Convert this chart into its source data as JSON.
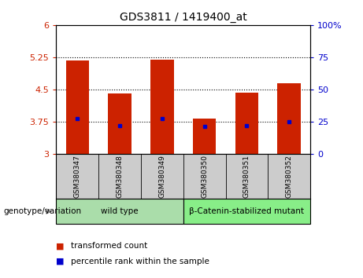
{
  "title": "GDS3811 / 1419400_at",
  "samples": [
    "GSM380347",
    "GSM380348",
    "GSM380349",
    "GSM380350",
    "GSM380351",
    "GSM380352"
  ],
  "bar_tops": [
    5.18,
    4.42,
    5.2,
    3.82,
    4.43,
    4.65
  ],
  "bar_bottoms": [
    3.0,
    3.0,
    3.0,
    3.0,
    3.0,
    3.0
  ],
  "blue_dots": [
    3.83,
    3.67,
    3.82,
    3.65,
    3.67,
    3.75
  ],
  "ylim_left": [
    3.0,
    6.0
  ],
  "yticks_left": [
    3.0,
    3.75,
    4.5,
    5.25,
    6.0
  ],
  "ytick_labels_left": [
    "3",
    "3.75",
    "4.5",
    "5.25",
    "6"
  ],
  "ylim_right": [
    0,
    100
  ],
  "yticks_right": [
    0,
    25,
    50,
    75,
    100
  ],
  "ytick_labels_right": [
    "0",
    "25",
    "50",
    "75",
    "100%"
  ],
  "bar_color": "#cc2200",
  "dot_color": "#0000cc",
  "left_tick_color": "#cc2200",
  "right_tick_color": "#0000cc",
  "grid_yticks": [
    3.75,
    4.5,
    5.25
  ],
  "group_labels": [
    "wild type",
    "β-Catenin-stabilized mutant"
  ],
  "group_ranges": [
    [
      0,
      3
    ],
    [
      3,
      6
    ]
  ],
  "group_colors": [
    "#aaddaa",
    "#88ee88"
  ],
  "xlabel_area": "genotype/variation",
  "legend_items": [
    "transformed count",
    "percentile rank within the sample"
  ],
  "legend_colors": [
    "#cc2200",
    "#0000cc"
  ],
  "bg_color": "#ffffff",
  "plot_bg_color": "#ffffff",
  "sample_area_color": "#cccccc",
  "bar_width": 0.55
}
